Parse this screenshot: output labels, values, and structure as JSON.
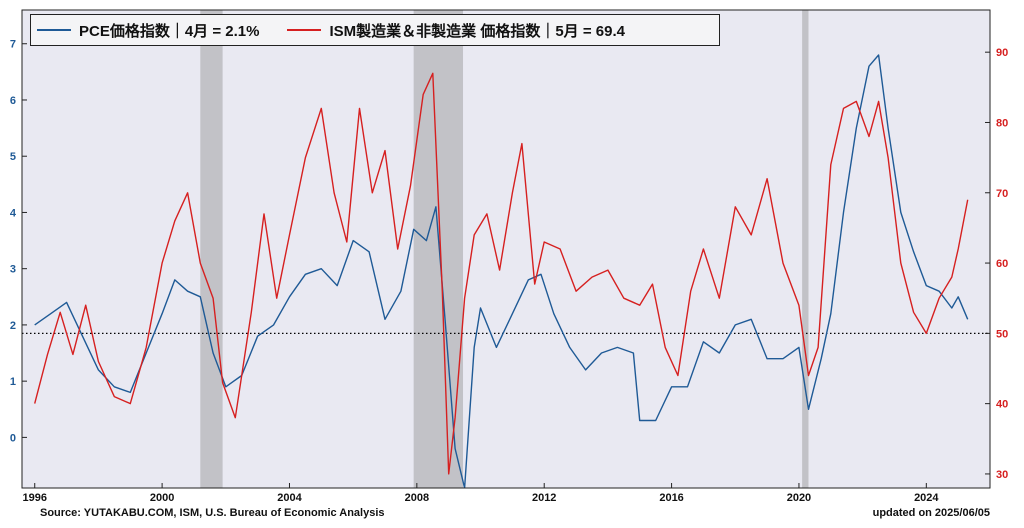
{
  "legend": {
    "pce_label": "PCE価格指数｜4月 = 2.1%",
    "ism_label": "ISM製造業＆非製造業 価格指数｜5月 = 69.4"
  },
  "footer": {
    "source": "Source: YUTAKABU.COM, ISM,  U.S. Bureau of Economic Analysis",
    "updated": "updated on 2025/06/05"
  },
  "colors": {
    "pce": "#1f5a96",
    "ism": "#d62020",
    "background": "#e9e9f2",
    "recession": "#b4b4b8",
    "left_axis": "#1f5a96",
    "right_axis": "#d62020"
  },
  "chart_data": {
    "type": "line",
    "x_ticks": [
      "1996",
      "2000",
      "2004",
      "2008",
      "2012",
      "2016",
      "2020",
      "2024"
    ],
    "y_left": {
      "ticks": [
        "0",
        "1",
        "2",
        "3",
        "4",
        "5",
        "6",
        "7"
      ],
      "range": [
        -0.9,
        7.6
      ]
    },
    "y_right": {
      "ticks": [
        "30",
        "40",
        "50",
        "60",
        "70",
        "80",
        "90"
      ],
      "range": [
        28,
        96
      ]
    },
    "x_range": [
      1995.6,
      2026.0
    ],
    "reference_line": {
      "axis": "right",
      "value": 50,
      "style": "dotted"
    },
    "recession_shading": [
      [
        2001.2,
        2001.9
      ],
      [
        2007.9,
        2009.45
      ],
      [
        2020.1,
        2020.3
      ]
    ],
    "series": [
      {
        "name": "PCE価格指数｜4月 = 2.1%",
        "axis": "left",
        "x": [
          1996.0,
          1996.5,
          1997.0,
          1997.5,
          1998.0,
          1998.5,
          1999.0,
          1999.5,
          2000.0,
          2000.4,
          2000.8,
          2001.2,
          2001.6,
          2002.0,
          2002.5,
          2003.0,
          2003.5,
          2004.0,
          2004.5,
          2005.0,
          2005.5,
          2006.0,
          2006.5,
          2007.0,
          2007.5,
          2007.9,
          2008.3,
          2008.6,
          2008.9,
          2009.2,
          2009.5,
          2009.8,
          2010.0,
          2010.5,
          2011.0,
          2011.5,
          2011.9,
          2012.3,
          2012.8,
          2013.3,
          2013.8,
          2014.3,
          2014.8,
          2015.0,
          2015.5,
          2016.0,
          2016.5,
          2017.0,
          2017.5,
          2018.0,
          2018.5,
          2019.0,
          2019.5,
          2020.0,
          2020.3,
          2020.7,
          2021.0,
          2021.4,
          2021.8,
          2022.2,
          2022.5,
          2022.8,
          2023.2,
          2023.6,
          2024.0,
          2024.4,
          2024.8,
          2025.0,
          2025.3
        ],
        "y": [
          2.0,
          2.2,
          2.4,
          1.8,
          1.2,
          0.9,
          0.8,
          1.5,
          2.2,
          2.8,
          2.6,
          2.5,
          1.5,
          0.9,
          1.1,
          1.8,
          2.0,
          2.5,
          2.9,
          3.0,
          2.7,
          3.5,
          3.3,
          2.1,
          2.6,
          3.7,
          3.5,
          4.1,
          2.0,
          -0.2,
          -0.9,
          1.6,
          2.3,
          1.6,
          2.2,
          2.8,
          2.9,
          2.2,
          1.6,
          1.2,
          1.5,
          1.6,
          1.5,
          0.3,
          0.3,
          0.9,
          0.9,
          1.7,
          1.5,
          2.0,
          2.1,
          1.4,
          1.4,
          1.6,
          0.5,
          1.4,
          2.2,
          4.0,
          5.5,
          6.6,
          6.8,
          5.5,
          4.0,
          3.3,
          2.7,
          2.6,
          2.3,
          2.5,
          2.1
        ]
      },
      {
        "name": "ISM製造業＆非製造業 価格指数｜5月 = 69.4",
        "axis": "right",
        "x": [
          1996.0,
          1996.4,
          1996.8,
          1997.2,
          1997.6,
          1998.0,
          1998.5,
          1999.0,
          1999.5,
          2000.0,
          2000.4,
          2000.8,
          2001.2,
          2001.6,
          2001.9,
          2002.3,
          2002.8,
          2003.2,
          2003.6,
          2004.0,
          2004.5,
          2005.0,
          2005.4,
          2005.8,
          2006.2,
          2006.6,
          2007.0,
          2007.4,
          2007.8,
          2008.2,
          2008.5,
          2008.8,
          2009.0,
          2009.2,
          2009.5,
          2009.8,
          2010.2,
          2010.6,
          2011.0,
          2011.3,
          2011.7,
          2012.0,
          2012.5,
          2013.0,
          2013.5,
          2014.0,
          2014.5,
          2015.0,
          2015.4,
          2015.8,
          2016.2,
          2016.6,
          2017.0,
          2017.5,
          2018.0,
          2018.5,
          2019.0,
          2019.5,
          2020.0,
          2020.3,
          2020.6,
          2021.0,
          2021.4,
          2021.8,
          2022.2,
          2022.5,
          2022.8,
          2023.2,
          2023.6,
          2024.0,
          2024.4,
          2024.8,
          2025.0,
          2025.3
        ],
        "y": [
          40,
          47,
          53,
          47,
          54,
          46,
          41,
          40,
          48,
          60,
          66,
          70,
          60,
          55,
          43,
          38,
          53,
          67,
          55,
          64,
          75,
          82,
          70,
          63,
          82,
          70,
          76,
          62,
          71,
          84,
          87,
          56,
          30,
          38,
          55,
          64,
          67,
          59,
          70,
          77,
          57,
          63,
          62,
          56,
          58,
          59,
          55,
          54,
          57,
          48,
          44,
          56,
          62,
          55,
          68,
          64,
          72,
          60,
          54,
          44,
          48,
          74,
          82,
          83,
          78,
          83,
          75,
          60,
          53,
          50,
          55,
          58,
          62,
          69
        ]
      }
    ]
  }
}
